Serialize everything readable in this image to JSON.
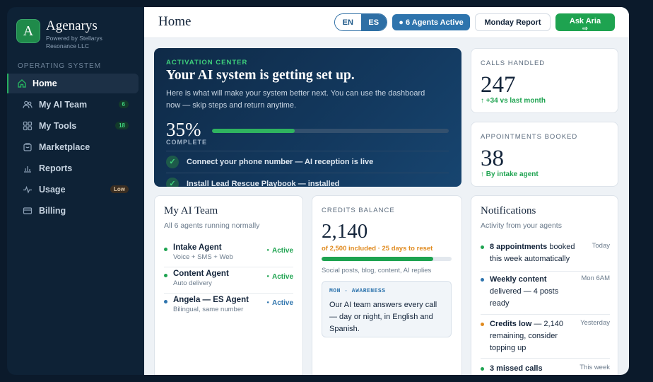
{
  "brand": {
    "name": "Agenarys",
    "logo_letter": "A",
    "subtitle": "Powered by Stellarys Resonance LLC"
  },
  "sidebar": {
    "section_label": "OPERATING SYSTEM",
    "items": [
      {
        "label": "Home",
        "icon": "home-icon",
        "active": true
      },
      {
        "label": "My AI Team",
        "icon": "users-icon",
        "badge": "6"
      },
      {
        "label": "My Tools",
        "icon": "grid-icon",
        "badge": "18"
      },
      {
        "label": "Marketplace",
        "icon": "store-icon"
      },
      {
        "label": "Reports",
        "icon": "bar-chart-icon"
      },
      {
        "label": "Usage",
        "icon": "activity-icon",
        "badge": "Low"
      },
      {
        "label": "Billing",
        "icon": "card-icon"
      }
    ]
  },
  "header": {
    "title": "Home",
    "lang_en": "EN",
    "lang_es": "ES",
    "agents_active": "● 6 Agents Active",
    "report_button": "Monday Report",
    "ask_button": "Ask Aria",
    "ask_arrow": "⇨"
  },
  "activation": {
    "eyebrow": "ACTIVATION CENTER",
    "title": "Your AI system is getting set up.",
    "description": "Here is what will make your system better next. You can use the dashboard now — skip steps and return anytime.",
    "percent": "35%",
    "progress_value": 0.35,
    "complete_label": "COMPLETE",
    "steps": [
      {
        "text": "Connect your phone number — AI reception is live",
        "check": "✓"
      },
      {
        "text": "Install Lead Rescue Playbook — installed",
        "check": "✓"
      }
    ]
  },
  "calls": {
    "label": "CALLS HANDLED",
    "value": "247",
    "sub": "↑ +34 vs last month"
  },
  "appointments": {
    "label": "APPOINTMENTS BOOKED",
    "value": "38",
    "sub": "↑ By intake agent"
  },
  "team": {
    "title": "My AI Team",
    "subtitle": "All 6 agents running normally",
    "agents": [
      {
        "name": "Intake Agent",
        "desc": "Voice + SMS + Web",
        "status": "Active",
        "status_color": "#1ea350"
      },
      {
        "name": "Content Agent",
        "desc": "Auto delivery",
        "status": "Active",
        "status_color": "#1ea350"
      },
      {
        "name": "Angela — ES Agent",
        "desc": "Bilingual, same number",
        "status": "Active",
        "status_color": "#2e74ad"
      }
    ]
  },
  "credits": {
    "label": "CREDITS BALANCE",
    "value": "2,140",
    "included": "of 2,500 included · 25 days to reset",
    "usage_fraction": 0.856,
    "uses": "Social posts, blog, content, AI replies",
    "callout_label": "MON · AWARENESS",
    "callout_text": "Our AI team answers every call — day or night, in English and Spanish."
  },
  "notifications": {
    "title": "Notifications",
    "subtitle": "Activity from your agents",
    "items": [
      {
        "bold": "8 appointments",
        "text": " booked this week automatically",
        "time": "Today",
        "color": "#1ea350"
      },
      {
        "bold": "Weekly content",
        "text": " delivered — 4 posts ready",
        "time": "Mon 6AM",
        "color": "#2e74ad"
      },
      {
        "bold": "Credits low",
        "text": " — 2,140 remaining, consider topping up",
        "time": "Yesterday",
        "color": "#e08a1e"
      },
      {
        "bold": "3 missed calls",
        "text": "",
        "time": "This week",
        "color": "#1ea350"
      }
    ]
  },
  "colors": {
    "accent_green": "#1ea350",
    "accent_blue": "#2e74ad",
    "warning_orange": "#e08a1e",
    "sidebar_bg": "#0e2236"
  }
}
